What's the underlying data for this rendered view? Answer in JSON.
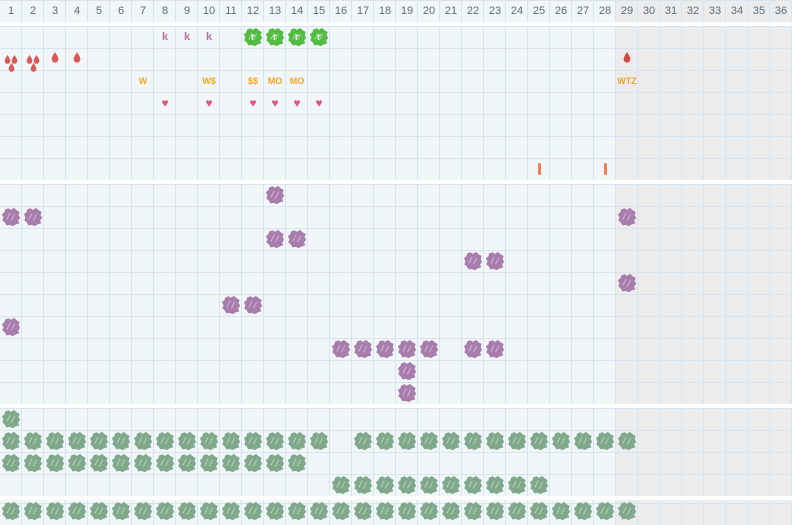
{
  "board": {
    "weeks": [
      "1",
      "2",
      "3",
      "4",
      "5",
      "6",
      "7",
      "8",
      "9",
      "10",
      "11",
      "12",
      "13",
      "14",
      "15",
      "16",
      "17",
      "18",
      "19",
      "20",
      "21",
      "22",
      "23",
      "24",
      "25",
      "26",
      "27",
      "28",
      "29",
      "30",
      "31",
      "32",
      "33",
      "34",
      "35",
      "36"
    ],
    "columns": 36,
    "muted_from_week": 29
  },
  "glyphs": {
    "k": "k",
    "r": "r",
    "heart": "♥"
  },
  "colors": {
    "bg_light": "#f1f6f8",
    "bg_offseason": "#ececec",
    "grid_line": "#d6e5ef",
    "divider": "#ffffff",
    "header_text": "#5f6b73",
    "k_purple": "#b573a5",
    "green_bright": "#52bb42",
    "green_sage": "#7fa98a",
    "purple": "#a87cac",
    "red": "#dc5858",
    "red_dark": "#cc4a46",
    "orange": "#f5a623",
    "pink": "#dd577d",
    "bar_orange": "#ef8052"
  },
  "sections": [
    {
      "name": "tasks",
      "rows": [
        {
          "cells": [
            {
              "cols": [
                8,
                9,
                10
              ],
              "type": "letter-k"
            },
            {
              "cols": [
                12,
                13,
                14,
                15
              ],
              "type": "green-scribble-r"
            }
          ]
        },
        {
          "cells": [
            {
              "cols": [
                1,
                2
              ],
              "type": "drops-3"
            },
            {
              "cols": [
                3,
                4
              ],
              "type": "drop-1"
            },
            {
              "cols": [
                29
              ],
              "type": "drop-1-dark"
            }
          ]
        },
        {
          "cells": [
            {
              "cols": [
                7
              ],
              "type": "label",
              "text": "W"
            },
            {
              "cols": [
                10
              ],
              "type": "label",
              "text": "W$"
            },
            {
              "cols": [
                12
              ],
              "type": "label",
              "text": "$$"
            },
            {
              "cols": [
                13
              ],
              "type": "label",
              "text": "MO"
            },
            {
              "cols": [
                14
              ],
              "type": "label",
              "text": "MO"
            },
            {
              "cols": [
                29
              ],
              "type": "label",
              "text": "WTZ"
            }
          ]
        },
        {
          "cells": [
            {
              "cols": [
                8,
                10,
                12,
                13,
                14,
                15
              ],
              "type": "heart"
            }
          ]
        },
        {
          "cells": []
        },
        {
          "cells": []
        },
        {
          "cells": [
            {
              "cols": [
                25,
                28
              ],
              "type": "bar-i"
            }
          ]
        }
      ]
    },
    {
      "name": "sowing",
      "rows": [
        {
          "cells": [
            {
              "cols": [
                13
              ],
              "type": "purple-scribble"
            }
          ]
        },
        {
          "cells": [
            {
              "cols": [
                1,
                2,
                29
              ],
              "type": "purple-scribble"
            }
          ]
        },
        {
          "cells": [
            {
              "cols": [
                13,
                14
              ],
              "type": "purple-scribble"
            }
          ]
        },
        {
          "cells": [
            {
              "cols": [
                22,
                23
              ],
              "type": "purple-scribble"
            }
          ]
        },
        {
          "cells": [
            {
              "cols": [
                29
              ],
              "type": "purple-scribble"
            }
          ]
        },
        {
          "cells": [
            {
              "cols": [
                11,
                12
              ],
              "type": "purple-scribble"
            }
          ]
        },
        {
          "cells": [
            {
              "cols": [
                1
              ],
              "type": "purple-scribble"
            }
          ]
        },
        {
          "cells": [
            {
              "cols": [
                16,
                17,
                18,
                19,
                20,
                22,
                23
              ],
              "type": "purple-scribble"
            }
          ]
        },
        {
          "cells": [
            {
              "cols": [
                19
              ],
              "type": "purple-scribble"
            }
          ]
        },
        {
          "cells": [
            {
              "cols": [
                19
              ],
              "type": "purple-scribble"
            }
          ]
        }
      ]
    },
    {
      "name": "growing",
      "rows": [
        {
          "cells": [
            {
              "cols": [
                1
              ],
              "type": "sage-scribble"
            }
          ]
        },
        {
          "cells": [
            {
              "cols": [
                1,
                2,
                3,
                4,
                5,
                6,
                7,
                8,
                9,
                10,
                11,
                12,
                13,
                14,
                15,
                17,
                18,
                19,
                20,
                21,
                22,
                23,
                24,
                25,
                26,
                27,
                28,
                29
              ],
              "type": "sage-scribble"
            }
          ]
        },
        {
          "cells": [
            {
              "cols": [
                1,
                2,
                3,
                4,
                5,
                6,
                7,
                8,
                9,
                10,
                11,
                12,
                13,
                14
              ],
              "type": "sage-scribble"
            }
          ]
        },
        {
          "cells": [
            {
              "cols": [
                16,
                17,
                18,
                19,
                20,
                21,
                22,
                23,
                24,
                25
              ],
              "type": "sage-scribble"
            }
          ]
        }
      ]
    },
    {
      "name": "harvest",
      "rows": [
        {
          "cells": [
            {
              "cols": [
                1,
                2,
                3,
                4,
                5,
                6,
                7,
                8,
                9,
                10,
                11,
                12,
                13,
                14,
                15,
                16,
                17,
                18,
                19,
                20,
                21,
                22,
                23,
                24,
                25,
                26,
                27,
                28,
                29
              ],
              "type": "sage-scribble"
            }
          ]
        }
      ]
    }
  ]
}
